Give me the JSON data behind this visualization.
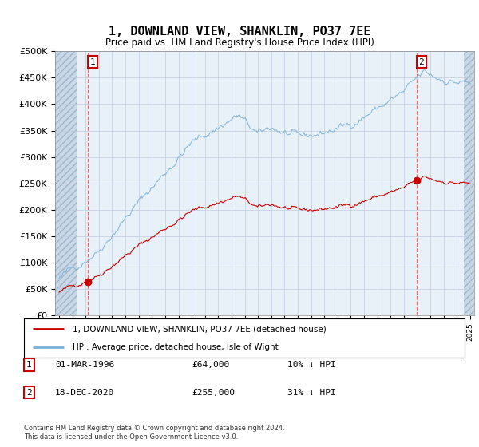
{
  "title": "1, DOWNLAND VIEW, SHANKLIN, PO37 7EE",
  "subtitle": "Price paid vs. HM Land Registry's House Price Index (HPI)",
  "ylim": [
    0,
    500000
  ],
  "yticks": [
    0,
    50000,
    100000,
    150000,
    200000,
    250000,
    300000,
    350000,
    400000,
    450000,
    500000
  ],
  "ytick_labels": [
    "£0",
    "£50K",
    "£100K",
    "£150K",
    "£200K",
    "£250K",
    "£300K",
    "£350K",
    "£400K",
    "£450K",
    "£500K"
  ],
  "bg_color": "#e8f0f8",
  "hatch_color": "#c8d8e8",
  "grid_color": "#c0cce0",
  "sale1_date": 1996.17,
  "sale1_price": 64000,
  "sale2_date": 2020.96,
  "sale2_price": 255000,
  "hpi_line_color": "#7ab0d8",
  "price_line_color": "#cc0000",
  "marker_color": "#cc0000",
  "vline_color": "#dd6666",
  "legend_entry1": "1, DOWNLAND VIEW, SHANKLIN, PO37 7EE (detached house)",
  "legend_entry2": "HPI: Average price, detached house, Isle of Wight",
  "footnote": "Contains HM Land Registry data © Crown copyright and database right 2024.\nThis data is licensed under the Open Government Licence v3.0.",
  "table_row1": [
    "1",
    "01-MAR-1996",
    "£64,000",
    "10% ↓ HPI"
  ],
  "table_row2": [
    "2",
    "18-DEC-2020",
    "£255,000",
    "31% ↓ HPI"
  ]
}
